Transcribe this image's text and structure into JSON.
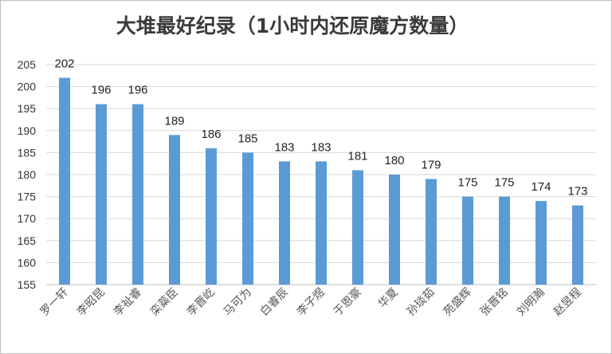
{
  "chart_data": {
    "type": "bar",
    "title": "大堆最好纪录（1小时内还原魔方数量）",
    "xlabel": "",
    "ylabel": "",
    "ylim": [
      155,
      205
    ],
    "yticks": [
      155,
      160,
      165,
      170,
      175,
      180,
      185,
      190,
      195,
      200,
      205
    ],
    "grid": true,
    "legend": "none",
    "bar_color": "#5b9bd5",
    "categories": [
      "罗一轩",
      "李昭昆",
      "李祉睿",
      "栾蘂臣",
      "李晋屹",
      "马可为",
      "白睿辰",
      "李子煜",
      "于恩豪",
      "华夏",
      "孙琰茹",
      "苑盛辉",
      "张晋铭",
      "刘明瀚",
      "赵昱程"
    ],
    "values": [
      202,
      196,
      196,
      189,
      186,
      185,
      183,
      183,
      181,
      180,
      179,
      175,
      175,
      174,
      173
    ]
  }
}
